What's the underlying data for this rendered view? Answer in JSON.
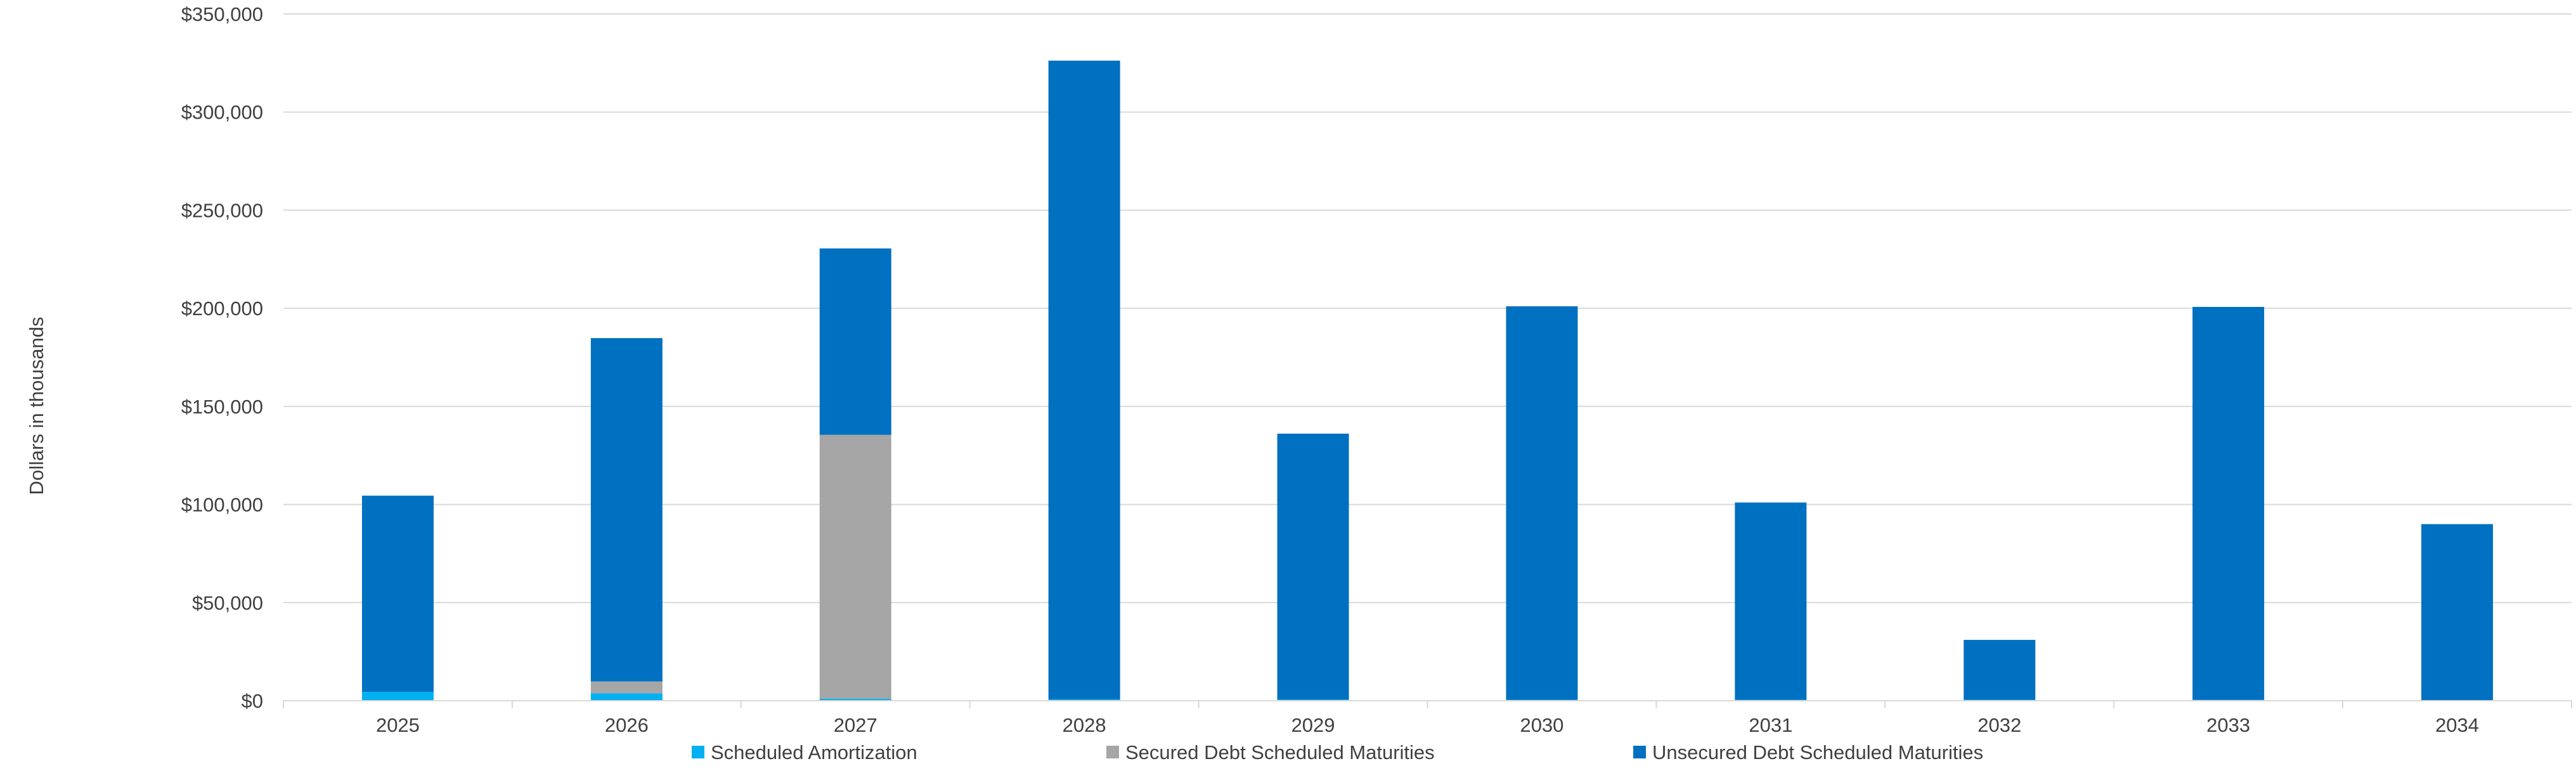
{
  "chart_data": {
    "type": "bar",
    "stacked": true,
    "ylabel": "Dollars in thousands",
    "xlabel": "",
    "ylim": [
      0,
      350000
    ],
    "yticks": [
      0,
      50000,
      100000,
      150000,
      200000,
      250000,
      300000,
      350000
    ],
    "ytick_labels": [
      "$0",
      "$50,000",
      "$100,000",
      "$150,000",
      "$200,000",
      "$250,000",
      "$300,000",
      "$350,000"
    ],
    "grid": true,
    "legend_position": "bottom",
    "categories": [
      "2025",
      "2026",
      "2027",
      "2028",
      "2029",
      "2030",
      "2031",
      "2032",
      "2033",
      "2034"
    ],
    "series": [
      {
        "name": "Scheduled Amortization",
        "color": "#00b0f0",
        "values": [
          4500,
          3800,
          1000,
          700,
          600,
          500,
          500,
          500,
          400,
          300
        ]
      },
      {
        "name": "Secured Debt Scheduled Maturities",
        "color": "#a6a6a6",
        "values": [
          0,
          6000,
          134500,
          0,
          0,
          0,
          0,
          0,
          0,
          0
        ]
      },
      {
        "name": "Unsecured Debt Scheduled Maturities",
        "color": "#0070c0",
        "values": [
          100000,
          175000,
          95000,
          325500,
          135500,
          200500,
          100500,
          30500,
          200300,
          89700
        ]
      }
    ]
  }
}
